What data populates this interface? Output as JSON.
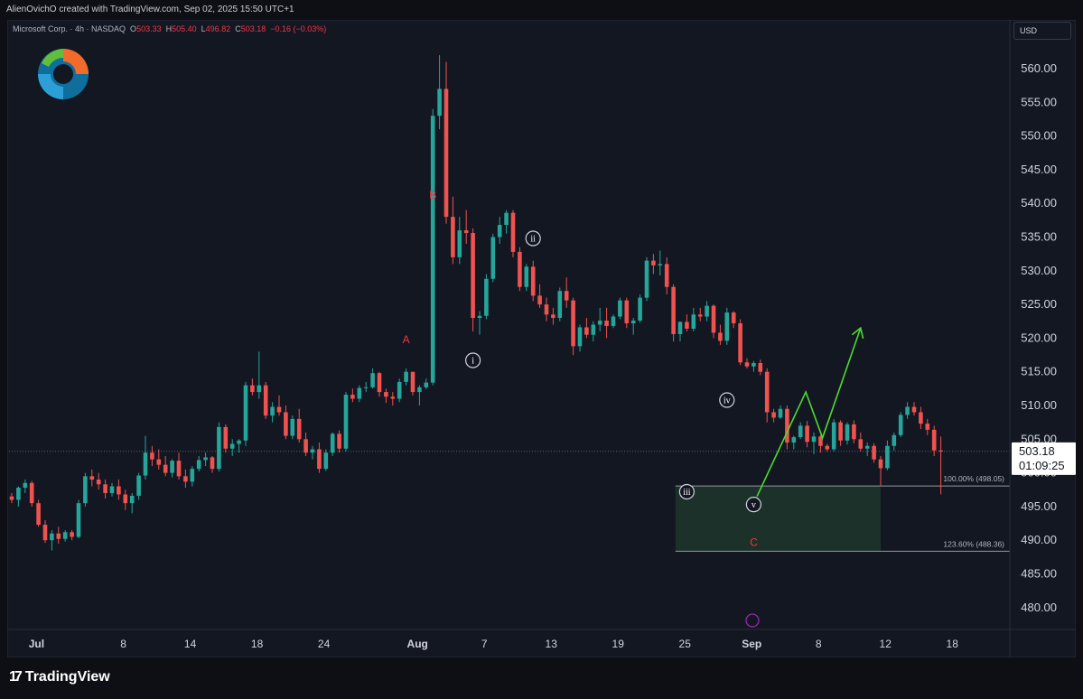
{
  "header": {
    "attribution": "AlienOvichO created with TradingView.com, Sep 02, 2025 15:50 UTC+1"
  },
  "legend": {
    "symbol": "Microsoft Corp. · 4h · NASDAQ",
    "o_label": "O",
    "o_value": "503.33",
    "h_label": "H",
    "h_value": "505.40",
    "l_label": "L",
    "l_value": "496.82",
    "c_label": "C",
    "c_value": "503.18",
    "change": "−0.16 (−0.03%)"
  },
  "currency_button": "USD",
  "footer": {
    "brand": "TradingView",
    "logo_icon": "tradingview-logo-icon"
  },
  "colors": {
    "background": "#131722",
    "up": "#26a69a",
    "down": "#ef5350",
    "wave_label_red": "#f23645",
    "projection": "#4cdb2f",
    "zone_fill": "#1f3b2c",
    "axis_text": "#d1d4dc"
  },
  "chart_data": {
    "type": "candlestick",
    "title": "Microsoft Corp. · 4h · NASDAQ",
    "timeframe": "4h",
    "ylim": [
      476,
      565
    ],
    "y_ticks": [
      "480.00",
      "485.00",
      "490.00",
      "495.00",
      "500.00",
      "505.00",
      "510.00",
      "515.00",
      "520.00",
      "525.00",
      "530.00",
      "535.00",
      "540.00",
      "545.00",
      "550.00",
      "555.00",
      "560.00"
    ],
    "x_ticks": [
      "Jul",
      "8",
      "14",
      "18",
      "24",
      "Aug",
      "7",
      "13",
      "19",
      "25",
      "Sep",
      "8",
      "12",
      "18"
    ],
    "x_tick_index": [
      1,
      14,
      24,
      34,
      44,
      58,
      68,
      78,
      88,
      98,
      108,
      118,
      128,
      138
    ],
    "current_price": "503.18",
    "countdown": "01:09:25",
    "candles": [
      [
        496.5,
        497,
        495.5,
        496
      ],
      [
        496,
        498,
        495,
        497.8
      ],
      [
        497.8,
        499,
        497,
        498.5
      ],
      [
        498.5,
        498.8,
        495,
        495.5
      ],
      [
        495.5,
        496,
        492,
        492.3
      ],
      [
        492.3,
        493,
        489.6,
        490
      ],
      [
        490,
        491.5,
        488.5,
        491
      ],
      [
        491,
        492,
        489.5,
        490.2
      ],
      [
        490.2,
        491.5,
        489.8,
        491.2
      ],
      [
        491.2,
        491.5,
        490,
        490.5
      ],
      [
        490.5,
        496,
        490.3,
        495.5
      ],
      [
        495.5,
        500,
        495,
        499.5
      ],
      [
        499.5,
        500.5,
        498,
        499
      ],
      [
        499,
        500,
        497.5,
        498.3
      ],
      [
        498.3,
        499,
        496.2,
        497
      ],
      [
        497,
        498.5,
        496.5,
        498
      ],
      [
        498,
        499,
        496,
        496.8
      ],
      [
        496.8,
        497.5,
        494.5,
        495.5
      ],
      [
        495.5,
        497,
        494,
        496.6
      ],
      [
        496.6,
        500,
        496,
        499.6
      ],
      [
        499.6,
        505.5,
        499,
        503
      ],
      [
        503,
        504,
        501,
        502
      ],
      [
        502,
        503.5,
        500.5,
        501.2
      ],
      [
        501.2,
        502.5,
        499.5,
        500
      ],
      [
        500,
        502,
        499.3,
        501.8
      ],
      [
        501.8,
        503,
        499,
        499.5
      ],
      [
        499.5,
        500.5,
        497.8,
        498.7
      ],
      [
        498.7,
        501,
        498,
        500.6
      ],
      [
        500.6,
        502.5,
        500.2,
        501.9
      ],
      [
        501.9,
        503,
        501,
        502.3
      ],
      [
        502.3,
        502.5,
        500,
        500.6
      ],
      [
        500.6,
        507.5,
        500.2,
        506.8
      ],
      [
        506.8,
        507.2,
        503,
        503.6
      ],
      [
        503.6,
        505,
        502.5,
        504.3
      ],
      [
        504.3,
        505,
        503,
        504.8
      ],
      [
        504.8,
        513.5,
        504,
        513
      ],
      [
        513,
        514,
        511.5,
        512
      ],
      [
        512,
        518,
        511,
        513
      ],
      [
        513,
        513.5,
        508,
        508.5
      ],
      [
        508.5,
        510.5,
        507.5,
        509.8
      ],
      [
        509.8,
        511.5,
        508.5,
        509
      ],
      [
        509,
        510,
        505,
        505.5
      ],
      [
        505.5,
        508.5,
        505,
        508
      ],
      [
        508,
        509.5,
        504.5,
        505
      ],
      [
        505,
        506,
        502.5,
        503
      ],
      [
        503,
        504,
        502,
        503.5
      ],
      [
        503.5,
        504.5,
        500,
        500.6
      ],
      [
        500.6,
        503.5,
        500.3,
        503
      ],
      [
        503,
        506,
        502.5,
        505.8
      ],
      [
        505.8,
        506.3,
        503,
        503.6
      ],
      [
        503.6,
        512,
        503.2,
        511.6
      ],
      [
        511.6,
        512.5,
        510.5,
        511
      ],
      [
        511,
        513,
        510.5,
        512.6
      ],
      [
        512.6,
        513.5,
        512,
        512.7
      ],
      [
        512.7,
        515.5,
        512.5,
        514.8
      ],
      [
        514.8,
        515,
        511.3,
        512
      ],
      [
        512,
        512.5,
        510.4,
        511.3
      ],
      [
        511.3,
        512,
        510,
        511
      ],
      [
        511,
        514,
        510.5,
        513.5
      ],
      [
        513.5,
        515.5,
        513,
        515
      ],
      [
        515,
        514.5,
        511.5,
        512
      ],
      [
        512,
        513,
        510,
        512.7
      ],
      [
        512.7,
        514,
        512.4,
        513.4
      ],
      [
        513.4,
        554,
        513,
        553
      ],
      [
        553,
        562,
        551,
        557
      ],
      [
        557,
        561,
        537,
        538
      ],
      [
        538,
        541,
        531,
        532
      ],
      [
        532,
        538,
        531,
        536
      ],
      [
        536,
        539,
        534,
        535.6
      ],
      [
        535.6,
        536.3,
        521,
        523
      ],
      [
        523,
        524,
        520.5,
        523.3
      ],
      [
        523.3,
        529.5,
        522.8,
        528.8
      ],
      [
        528.8,
        535.5,
        528.3,
        535
      ],
      [
        535,
        538,
        534,
        536.8
      ],
      [
        536.8,
        539,
        535.5,
        538.6
      ],
      [
        538.6,
        539,
        532,
        532.8
      ],
      [
        532.8,
        533.5,
        527,
        527.6
      ],
      [
        527.6,
        531,
        527,
        530.6
      ],
      [
        530.6,
        531.5,
        525.5,
        526.3
      ],
      [
        526.3,
        528,
        524.5,
        525
      ],
      [
        525,
        526,
        522.5,
        523.5
      ],
      [
        523.5,
        524.5,
        522,
        523
      ],
      [
        523,
        527.5,
        522.5,
        527
      ],
      [
        527,
        529,
        524.5,
        525.6
      ],
      [
        525.6,
        526,
        517.5,
        518.8
      ],
      [
        518.8,
        522,
        518,
        521.6
      ],
      [
        521.6,
        523,
        520,
        520.5
      ],
      [
        520.5,
        522.5,
        519.5,
        522
      ],
      [
        522,
        524.5,
        521,
        522.6
      ],
      [
        522.6,
        524.5,
        520,
        521.8
      ],
      [
        521.8,
        523.5,
        521.5,
        523.2
      ],
      [
        523.2,
        526,
        522.8,
        525.6
      ],
      [
        525.6,
        526,
        521.5,
        522.2
      ],
      [
        522.2,
        523,
        520.5,
        522.6
      ],
      [
        522.6,
        526.5,
        522.3,
        526
      ],
      [
        526,
        532,
        525.5,
        531.5
      ],
      [
        531.5,
        532.5,
        529.5,
        530.8
      ],
      [
        530.8,
        533,
        529.3,
        531
      ],
      [
        531,
        532,
        526.5,
        527.6
      ],
      [
        527.6,
        528,
        519.5,
        520.6
      ],
      [
        520.6,
        522.5,
        519.5,
        522.4
      ],
      [
        522.4,
        523.5,
        521,
        521.4
      ],
      [
        521.4,
        524.5,
        521,
        523.5
      ],
      [
        523.5,
        524.5,
        522.5,
        523.2
      ],
      [
        523.2,
        525.5,
        522.5,
        524.8
      ],
      [
        524.8,
        525,
        520,
        520.8
      ],
      [
        520.8,
        522,
        519,
        519.6
      ],
      [
        519.6,
        524.5,
        519,
        523.8
      ],
      [
        523.8,
        524,
        521.5,
        522.2
      ],
      [
        522.2,
        522.8,
        516,
        516.4
      ],
      [
        516.4,
        517,
        515.5,
        515.8
      ],
      [
        515.8,
        516.6,
        515,
        516.3
      ],
      [
        516.3,
        516.8,
        514.5,
        515
      ],
      [
        515,
        515.5,
        507.5,
        509
      ],
      [
        509,
        509.5,
        507.5,
        508.2
      ],
      [
        508.2,
        510,
        508,
        509.5
      ],
      [
        509.5,
        510,
        503.5,
        504.5
      ],
      [
        504.5,
        505.5,
        503.5,
        505.3
      ],
      [
        505.3,
        507.5,
        505,
        507
      ],
      [
        507,
        507.7,
        503.8,
        504.6
      ],
      [
        504.6,
        506,
        502.8,
        505.4
      ],
      [
        505.4,
        505.6,
        503,
        504
      ],
      [
        504,
        504.3,
        503.2,
        503.5
      ],
      [
        503.5,
        508,
        503.2,
        507.5
      ],
      [
        507.5,
        507.8,
        504,
        504.8
      ],
      [
        504.8,
        507.5,
        504.2,
        507.2
      ],
      [
        507.2,
        507.8,
        504.4,
        505
      ],
      [
        505,
        506,
        503.2,
        503.6
      ],
      [
        503.6,
        504.5,
        502.5,
        504
      ],
      [
        504,
        504.4,
        501.5,
        502
      ],
      [
        502,
        502.5,
        498,
        500.7
      ],
      [
        500.7,
        504.8,
        500.4,
        504
      ],
      [
        504,
        506,
        503.3,
        505.6
      ],
      [
        505.6,
        509,
        505.3,
        508.6
      ],
      [
        508.6,
        510.5,
        508,
        509.8
      ],
      [
        509.8,
        510.5,
        508.5,
        509
      ],
      [
        509,
        509.8,
        506.5,
        507.3
      ],
      [
        507.3,
        508,
        505.6,
        506.4
      ],
      [
        506.4,
        507,
        502.5,
        503.33
      ],
      [
        503.33,
        505.4,
        496.82,
        503.18
      ]
    ]
  },
  "annotations": {
    "wave_labels": [
      {
        "text": "A",
        "style": "red"
      },
      {
        "text": "B",
        "style": "red"
      },
      {
        "text": "C",
        "style": "red"
      },
      {
        "text": "i",
        "style": "circle"
      },
      {
        "text": "ii",
        "style": "circle"
      },
      {
        "text": "iii",
        "style": "circle"
      },
      {
        "text": "iv",
        "style": "circle"
      },
      {
        "text": "v",
        "style": "circle"
      }
    ],
    "fib_levels": [
      {
        "label": "100.00% (498.05)",
        "price": 498.05
      },
      {
        "label": "123.60% (488.36)",
        "price": 488.36
      }
    ],
    "projection_path": [
      {
        "t": 111.5,
        "price": 496.5
      },
      {
        "t": 118.8,
        "price": 512
      },
      {
        "t": 121.3,
        "price": 505.2
      },
      {
        "t": 127,
        "price": 521.5
      }
    ]
  }
}
